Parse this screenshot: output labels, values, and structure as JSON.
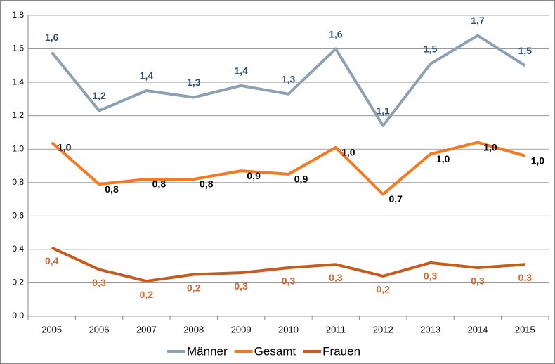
{
  "chart_data": {
    "type": "line",
    "categories": [
      "2005",
      "2006",
      "2007",
      "2008",
      "2009",
      "2010",
      "2011",
      "2012",
      "2013",
      "2014",
      "2015"
    ],
    "series": [
      {
        "name": "Männer",
        "color": "#8ca2b3",
        "label_color": "#2c4f77",
        "values": [
          1.58,
          1.23,
          1.35,
          1.31,
          1.38,
          1.33,
          1.6,
          1.14,
          1.51,
          1.68,
          1.5
        ],
        "value_labels": [
          "1,6",
          "1,2",
          "1,4",
          "1,3",
          "1,4",
          "1,3",
          "1,6",
          "1,1",
          "1,5",
          "1,7",
          "1,5"
        ]
      },
      {
        "name": "Gesamt",
        "color": "#f7781e",
        "label_color": "#000000",
        "values": [
          1.04,
          0.79,
          0.82,
          0.82,
          0.87,
          0.85,
          1.01,
          0.73,
          0.97,
          1.04,
          0.96
        ],
        "value_labels": [
          "1,0",
          "0,8",
          "0,8",
          "0,8",
          "0,9",
          "0,9",
          "1,0",
          "0,7",
          "1,0",
          "1,0",
          "1,0"
        ]
      },
      {
        "name": "Frauen",
        "color": "#c85a1e",
        "label_color": "#d2692e",
        "values": [
          0.41,
          0.28,
          0.21,
          0.25,
          0.26,
          0.29,
          0.31,
          0.24,
          0.32,
          0.29,
          0.31
        ],
        "value_labels": [
          "0,4",
          "0,3",
          "0,2",
          "0,2",
          "0,3",
          "0,3",
          "0,3",
          "0,2",
          "0,3",
          "0,3",
          "0,3"
        ]
      }
    ],
    "ylim": [
      0,
      1.8
    ],
    "yticks": [
      {
        "value": 0,
        "label": "0,0"
      },
      {
        "value": 0.2,
        "label": "0,2"
      },
      {
        "value": 0.4,
        "label": "0,4"
      },
      {
        "value": 0.6,
        "label": "0,6"
      },
      {
        "value": 0.8,
        "label": "0,8"
      },
      {
        "value": 1.0,
        "label": "1,0"
      },
      {
        "value": 1.2,
        "label": "1,2"
      },
      {
        "value": 1.4,
        "label": "1,4"
      },
      {
        "value": 1.6,
        "label": "1,6"
      },
      {
        "value": 1.8,
        "label": "1,8"
      }
    ],
    "grid": true,
    "legend": "bottom"
  }
}
